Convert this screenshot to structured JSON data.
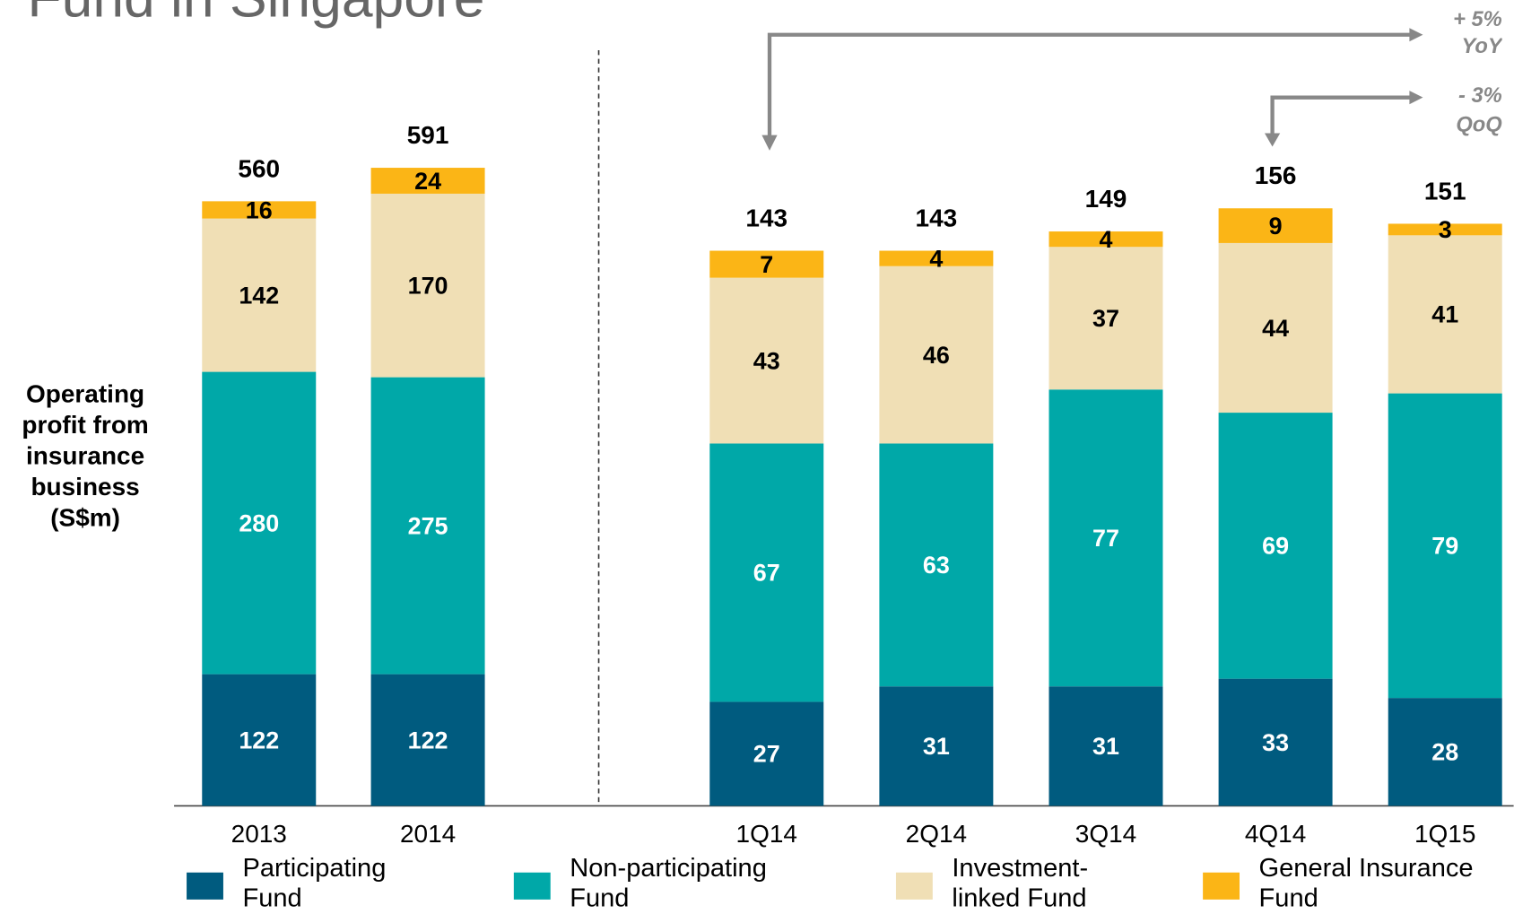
{
  "title": "Fund in Singapore",
  "y_axis_label": "Operating profit from insurance business (S$m)",
  "annotations": [
    "+ 5% YoY",
    "- 3% QoQ"
  ],
  "chart_data": [
    {
      "type": "bar",
      "stacked": true,
      "categories": [
        "2013",
        "2014"
      ],
      "series": [
        {
          "name": "Participating Fund",
          "color": "#005b7f",
          "values": [
            122,
            122
          ]
        },
        {
          "name": "Non-participating Fund",
          "color": "#00a8a8",
          "values": [
            280,
            275
          ]
        },
        {
          "name": "Investment-linked Fund",
          "color": "#f0dfb5",
          "values": [
            142,
            170
          ]
        },
        {
          "name": "General Insurance Fund",
          "color": "#fbb516",
          "values": [
            16,
            24
          ]
        }
      ],
      "totals": [
        560,
        591
      ],
      "ylim": [
        0,
        657
      ]
    },
    {
      "type": "bar",
      "stacked": true,
      "categories": [
        "1Q14",
        "2Q14",
        "3Q14",
        "4Q14",
        "1Q15"
      ],
      "series": [
        {
          "name": "Participating Fund",
          "color": "#005b7f",
          "values": [
            27,
            31,
            31,
            33,
            28
          ]
        },
        {
          "name": "Non-participating Fund",
          "color": "#00a8a8",
          "values": [
            67,
            63,
            77,
            69,
            79
          ]
        },
        {
          "name": "Investment-linked Fund",
          "color": "#f0dfb5",
          "values": [
            43,
            46,
            37,
            44,
            41
          ]
        },
        {
          "name": "General Insurance Fund",
          "color": "#fbb516",
          "values": [
            7,
            4,
            4,
            9,
            3
          ]
        }
      ],
      "totals": [
        143,
        143,
        149,
        156,
        151
      ],
      "ylim": [
        0,
        184
      ]
    }
  ]
}
